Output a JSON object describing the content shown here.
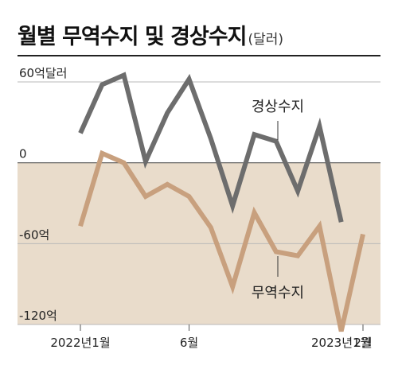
{
  "title": "월별 무역수지 및 경상수지",
  "unit": "(달러)",
  "chart_data": {
    "type": "line",
    "categories": [
      "2022-01",
      "2022-02",
      "2022-03",
      "2022-04",
      "2022-05",
      "2022-06",
      "2022-07",
      "2022-08",
      "2022-09",
      "2022-10",
      "2022-11",
      "2022-12",
      "2023-01",
      "2023-02"
    ],
    "x_tick_labels": [
      {
        "index": 0,
        "label": "2022년1월"
      },
      {
        "index": 5,
        "label": "6월"
      },
      {
        "index": 12,
        "label": "2023년1월"
      },
      {
        "index": 13,
        "label": "2월"
      }
    ],
    "y_tick_labels": [
      {
        "value": 60,
        "label": "60억달러"
      },
      {
        "value": 0,
        "label": "0"
      },
      {
        "value": -60,
        "label": "-60억"
      },
      {
        "value": -120,
        "label": "-120억"
      }
    ],
    "ylim": [
      -120,
      60
    ],
    "grid": true,
    "series": [
      {
        "name": "경상수지",
        "color": "#6d6d6d",
        "values": [
          22,
          58,
          65,
          1,
          37,
          62,
          18,
          -32,
          21,
          16,
          -21,
          27,
          -44,
          null
        ]
      },
      {
        "name": "무역수지",
        "color": "#c8a07e",
        "values": [
          -47,
          7,
          0,
          -25,
          -16,
          -25,
          -48,
          -92,
          -37,
          -66,
          -69,
          -47,
          -125,
          -53
        ]
      }
    ],
    "shaded_region": {
      "from": 0,
      "to": -120,
      "color": "#e9dccb"
    }
  }
}
